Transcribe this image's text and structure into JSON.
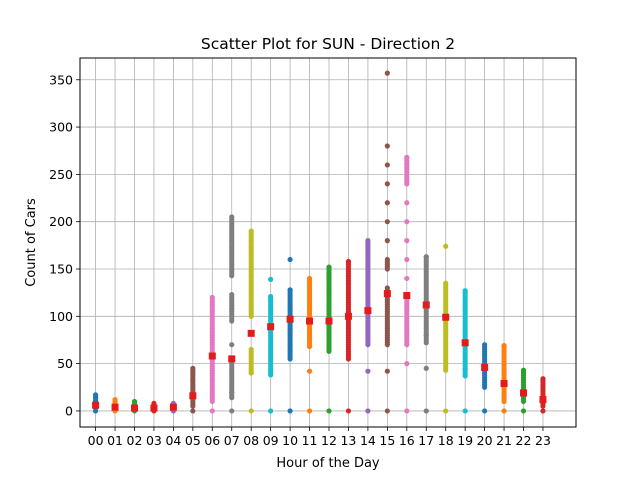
{
  "chart_data": {
    "type": "scatter",
    "title": "Scatter Plot for SUN - Direction 2",
    "xlabel": "Hour of the Day",
    "ylabel": "Count of Cars",
    "categories": [
      "00",
      "01",
      "02",
      "03",
      "04",
      "05",
      "06",
      "07",
      "08",
      "09",
      "10",
      "11",
      "12",
      "13",
      "14",
      "15",
      "16",
      "17",
      "18",
      "19",
      "20",
      "21",
      "22",
      "23"
    ],
    "ylim": [
      -17,
      373
    ],
    "yticks": [
      0,
      50,
      100,
      150,
      200,
      250,
      300,
      350
    ],
    "grid": true,
    "colors": [
      "#1f77b4",
      "#ff7f0e",
      "#2ca02c",
      "#d62728",
      "#9467bd",
      "#8c564b",
      "#e377c2",
      "#7f7f7f",
      "#bcbd22",
      "#17becf"
    ],
    "mean_color": "#e41a1c",
    "series": [
      {
        "x": "00",
        "points": [
          0,
          3,
          5,
          7,
          9,
          11,
          14,
          17
        ],
        "mean": 6
      },
      {
        "x": "01",
        "points": [
          0,
          2,
          4,
          6,
          8,
          10,
          12
        ],
        "mean": 4
      },
      {
        "x": "02",
        "points": [
          0,
          2,
          4,
          6,
          8,
          10
        ],
        "mean": 3
      },
      {
        "x": "03",
        "points": [
          0,
          2,
          4,
          6,
          8
        ],
        "mean": 3
      },
      {
        "x": "04",
        "points": [
          0,
          2,
          4,
          6,
          8
        ],
        "mean": 4
      },
      {
        "x": "05",
        "points": [
          0,
          5,
          10,
          15,
          20,
          25,
          30,
          35,
          40,
          45
        ],
        "mean": 16
      },
      {
        "x": "06",
        "points": [
          0,
          10,
          20,
          30,
          40,
          50,
          60,
          70,
          80,
          90,
          100,
          110,
          120
        ],
        "mean": 58
      },
      {
        "x": "07",
        "points": [
          0,
          14,
          20,
          25,
          30,
          35,
          40,
          50,
          70,
          95,
          108,
          123,
          143,
          150,
          160,
          170,
          180,
          190,
          200,
          205
        ],
        "mean": 55
      },
      {
        "x": "08",
        "points": [
          0,
          40,
          45,
          50,
          55,
          60,
          65,
          100,
          110,
          120,
          130,
          140,
          150,
          160,
          175,
          190
        ],
        "mean": 82
      },
      {
        "x": "09",
        "points": [
          0,
          38,
          45,
          55,
          65,
          75,
          85,
          95,
          105,
          115,
          121,
          139
        ],
        "mean": 89
      },
      {
        "x": "10",
        "points": [
          0,
          55,
          65,
          75,
          85,
          95,
          105,
          115,
          125,
          128,
          160
        ],
        "mean": 97
      },
      {
        "x": "11",
        "points": [
          0,
          42,
          68,
          75,
          85,
          95,
          105,
          115,
          125,
          135,
          140
        ],
        "mean": 95
      },
      {
        "x": "12",
        "points": [
          0,
          63,
          75,
          85,
          95,
          105,
          115,
          127,
          140,
          144,
          152
        ],
        "mean": 95
      },
      {
        "x": "13",
        "points": [
          0,
          55,
          70,
          80,
          90,
          100,
          110,
          120,
          130,
          140,
          150,
          158
        ],
        "mean": 100
      },
      {
        "x": "14",
        "points": [
          0,
          42,
          70,
          80,
          90,
          100,
          110,
          120,
          130,
          140,
          150,
          160,
          170,
          180
        ],
        "mean": 106
      },
      {
        "x": "15",
        "points": [
          0,
          42,
          70,
          80,
          90,
          100,
          110,
          120,
          125,
          130,
          150,
          160,
          180,
          200,
          220,
          240,
          260,
          280,
          357
        ],
        "mean": 124
      },
      {
        "x": "16",
        "points": [
          0,
          50,
          70,
          80,
          90,
          100,
          110,
          120,
          140,
          160,
          180,
          200,
          220,
          240,
          255,
          262,
          268
        ],
        "mean": 122
      },
      {
        "x": "17",
        "points": [
          0,
          45,
          72,
          80,
          90,
          100,
          110,
          120,
          130,
          140,
          150,
          163
        ],
        "mean": 112
      },
      {
        "x": "18",
        "points": [
          0,
          43,
          55,
          65,
          75,
          85,
          95,
          105,
          115,
          125,
          135,
          174
        ],
        "mean": 99
      },
      {
        "x": "19",
        "points": [
          0,
          37,
          45,
          55,
          65,
          75,
          85,
          95,
          105,
          115,
          127
        ],
        "mean": 72
      },
      {
        "x": "20",
        "points": [
          0,
          25,
          30,
          35,
          40,
          45,
          50,
          55,
          60,
          65,
          70
        ],
        "mean": 46
      },
      {
        "x": "21",
        "points": [
          0,
          10,
          15,
          20,
          25,
          30,
          35,
          40,
          45,
          50,
          55,
          60,
          69
        ],
        "mean": 29
      },
      {
        "x": "22",
        "points": [
          0,
          10,
          15,
          20,
          25,
          30,
          35,
          40,
          43
        ],
        "mean": 19
      },
      {
        "x": "23",
        "points": [
          0,
          5,
          10,
          15,
          20,
          25,
          34
        ],
        "mean": 12
      }
    ]
  }
}
